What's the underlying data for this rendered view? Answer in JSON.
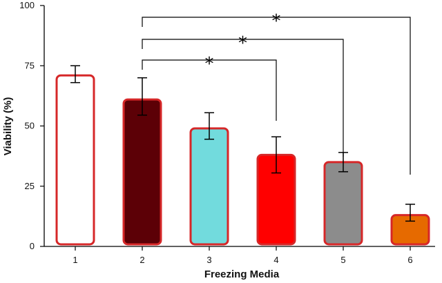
{
  "chart_data": {
    "type": "bar",
    "title": "",
    "xlabel": "Freezing Media",
    "ylabel": "Viability (%)",
    "ylim": [
      0,
      100
    ],
    "yticks": [
      0,
      25,
      50,
      75,
      100
    ],
    "categories": [
      "1",
      "2",
      "3",
      "4",
      "5",
      "6"
    ],
    "values": [
      71,
      61,
      49,
      38,
      35,
      13
    ],
    "error_bars": [
      {
        "low": 68,
        "high": 75
      },
      {
        "low": 54.5,
        "high": 70
      },
      {
        "low": 44.5,
        "high": 55.5
      },
      {
        "low": 30.5,
        "high": 45.5
      },
      {
        "low": 31,
        "high": 39
      },
      {
        "low": 10.5,
        "high": 17.5
      }
    ],
    "fill_colors": [
      "#ffffff",
      "#5c0006",
      "#72dbdd",
      "#ff0000",
      "#8c8c8c",
      "#e66a00"
    ],
    "edge_color": "#d62728",
    "grid": false,
    "significance": [
      {
        "from": "2",
        "to": "4",
        "label": "*"
      },
      {
        "from": "2",
        "to": "5",
        "label": "*"
      },
      {
        "from": "2",
        "to": "6",
        "label": "*"
      }
    ]
  }
}
